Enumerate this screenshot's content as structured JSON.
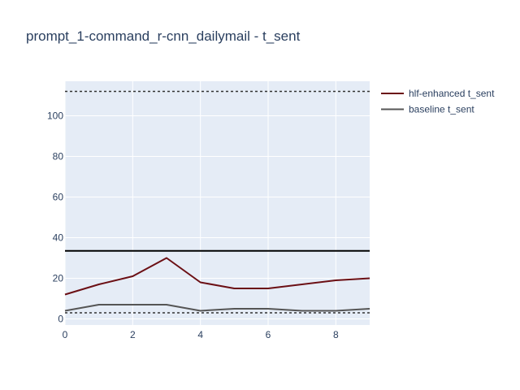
{
  "chart_data": {
    "type": "line",
    "title": "prompt_1-command_r-cnn_dailymail - t_sent",
    "xlabel": "",
    "ylabel": "",
    "xlim": [
      0,
      9
    ],
    "ylim": [
      -3,
      117
    ],
    "x_ticks": [
      0,
      2,
      4,
      6,
      8
    ],
    "y_ticks": [
      0,
      20,
      40,
      60,
      80,
      100
    ],
    "grid": true,
    "legend_position": "top-right",
    "x": [
      0,
      1,
      2,
      3,
      4,
      5,
      6,
      7,
      8,
      9
    ],
    "series": [
      {
        "name": "hlf-enhanced t_sent",
        "color": "#6b0f14",
        "values": [
          12,
          17,
          21,
          30,
          18,
          15,
          15,
          17,
          19,
          20
        ]
      },
      {
        "name": "baseline t_sent",
        "color": "#555555",
        "values": [
          4,
          7,
          7,
          7,
          4,
          5,
          5,
          4,
          4,
          5
        ]
      }
    ],
    "reference_lines": [
      {
        "y": 112,
        "style": "dotted",
        "color": "#333333"
      },
      {
        "y": 33.5,
        "style": "solid",
        "color": "#000000"
      },
      {
        "y": 3,
        "style": "dotted",
        "color": "#333333"
      }
    ],
    "colors": {
      "plot_background": "#e5ecf6",
      "grid": "#ffffff",
      "text": "#2a3f5f"
    }
  }
}
